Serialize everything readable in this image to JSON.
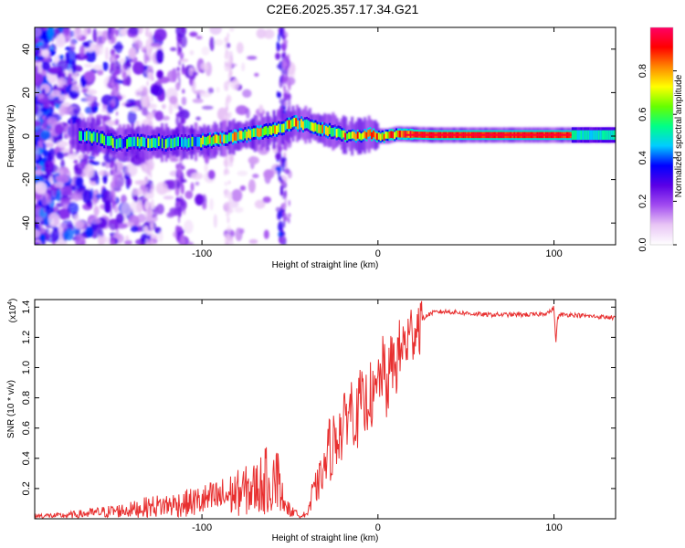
{
  "title": "C2E6.2025.357.17.34.G21",
  "chart_data": [
    {
      "type": "heatmap",
      "xlabel": "Height of straight line (km)",
      "ylabel": "Frequency (Hz)",
      "xlim": [
        -195,
        135
      ],
      "ylim": [
        -50,
        50
      ],
      "xticks": [
        -100,
        0,
        100
      ],
      "yticks": [
        -40,
        -20,
        0,
        20,
        40
      ],
      "ridge": {
        "x": [
          -165,
          -150,
          -130,
          -110,
          -95,
          -80,
          -65,
          -55,
          -48,
          -40,
          -32,
          -25,
          -18,
          -10,
          -5,
          0,
          5,
          10,
          30,
          60,
          100,
          135
        ],
        "frequency": [
          0,
          -3,
          -3,
          -3,
          -2,
          0,
          2,
          4,
          6,
          5,
          3,
          2,
          0,
          0,
          1,
          0,
          0,
          1,
          0.5,
          0.5,
          0.5,
          0.5
        ]
      },
      "colorbar": {
        "label": "Normalized spectral amplitude",
        "ticks": [
          0.0,
          0.2,
          0.4,
          0.6,
          0.8
        ],
        "range": [
          0,
          1
        ],
        "stops": [
          "#ffffff",
          "#e9c6f5",
          "#a24cf0",
          "#5a00e6",
          "#0000ff",
          "#00ccff",
          "#00ff88",
          "#66ff00",
          "#ffff00",
          "#ff8800",
          "#ff0000",
          "#ff0066"
        ]
      }
    },
    {
      "type": "line",
      "xlabel": "Height of straight line (km)",
      "ylabel": "SNR (10 * v/v)",
      "y_multiplier": "(x10",
      "y_multiplier_exp": "4",
      "xlim": [
        -195,
        135
      ],
      "ylim": [
        0,
        1.45
      ],
      "xticks": [
        -100,
        0,
        100
      ],
      "yticks": [
        0.2,
        0.4,
        0.6,
        0.8,
        1.0,
        1.2,
        1.4
      ],
      "color": "#e83030",
      "series": {
        "x": [
          -195,
          -180,
          -170,
          -160,
          -150,
          -140,
          -130,
          -120,
          -110,
          -100,
          -90,
          -80,
          -70,
          -65,
          -60,
          -57,
          -55,
          -52,
          -50,
          -45,
          -40,
          -35,
          -30,
          -28,
          -25,
          -22,
          -20,
          -18,
          -15,
          -12,
          -10,
          -8,
          -5,
          -2,
          0,
          3,
          5,
          8,
          10,
          12,
          15,
          18,
          20,
          22,
          25,
          30,
          35,
          40,
          50,
          60,
          70,
          80,
          90,
          95,
          98,
          100,
          101,
          102,
          104,
          110,
          120,
          135
        ],
        "y": [
          0.02,
          0.02,
          0.03,
          0.04,
          0.05,
          0.06,
          0.08,
          0.09,
          0.1,
          0.12,
          0.14,
          0.17,
          0.2,
          0.24,
          0.28,
          0.36,
          0.2,
          0.1,
          0.07,
          0.03,
          0.05,
          0.2,
          0.35,
          0.45,
          0.5,
          0.6,
          0.55,
          0.7,
          0.75,
          0.65,
          0.8,
          0.7,
          0.85,
          0.75,
          0.9,
          1.0,
          0.85,
          1.05,
          1.0,
          1.1,
          1.15,
          1.2,
          1.25,
          1.28,
          1.32,
          1.36,
          1.37,
          1.37,
          1.36,
          1.35,
          1.35,
          1.35,
          1.35,
          1.36,
          1.37,
          1.4,
          1.15,
          1.33,
          1.35,
          1.35,
          1.34,
          1.33
        ]
      }
    }
  ]
}
